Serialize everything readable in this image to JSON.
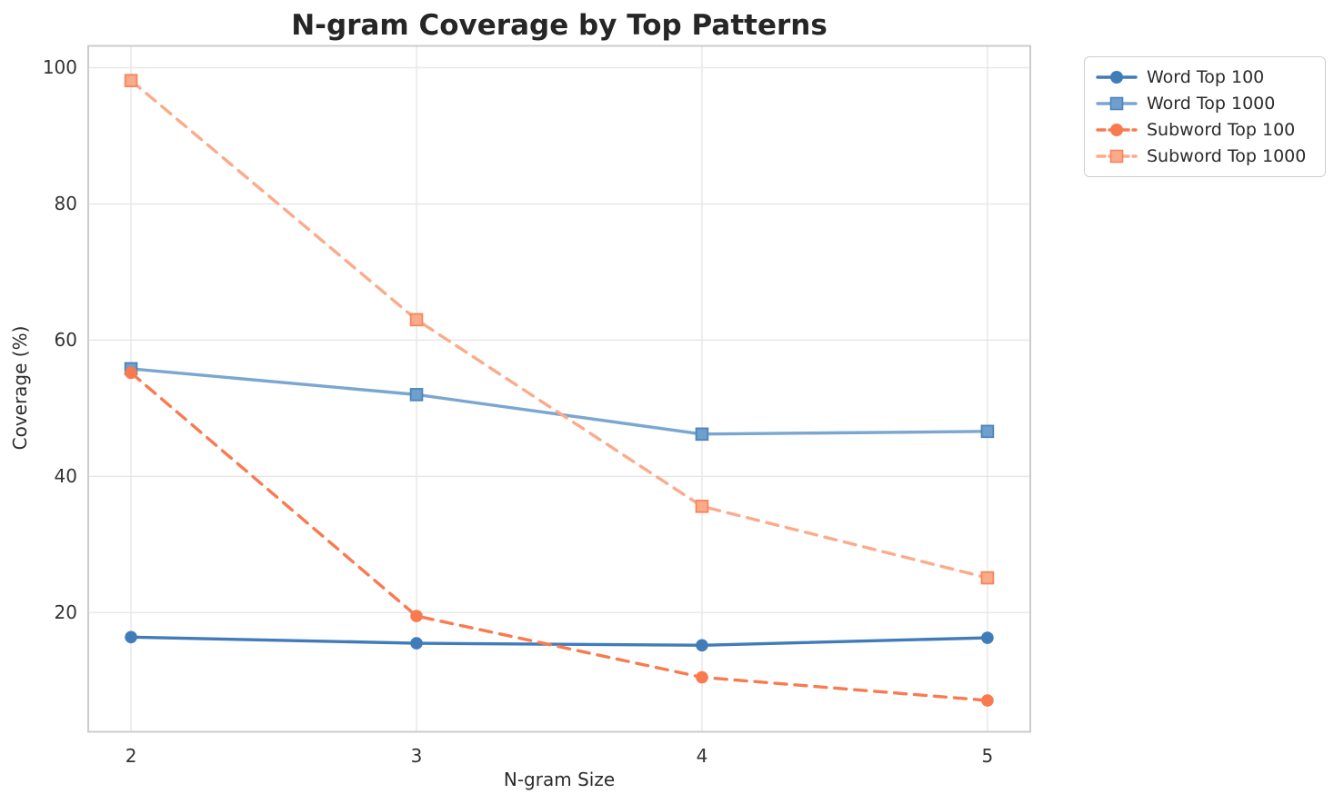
{
  "figure": {
    "background": "#ffffff",
    "text_color": "#2b2b2b",
    "grid_color": "#e8e8e8",
    "spine_color": "#cccccc"
  },
  "chart_data": {
    "type": "line",
    "title": "N-gram Coverage by Top Patterns",
    "xlabel": "N-gram Size",
    "ylabel": "Coverage (%)",
    "x": [
      2,
      3,
      4,
      5
    ],
    "xtick_labels": [
      "2",
      "3",
      "4",
      "5"
    ],
    "yticks": [
      20,
      40,
      60,
      80,
      100
    ],
    "ytick_labels": [
      "20",
      "40",
      "60",
      "80",
      "100"
    ],
    "xlim": [
      1.85,
      5.15
    ],
    "ylim": [
      2.5,
      103.2
    ],
    "grid": true,
    "legend_position": "outside-upper-right",
    "series": [
      {
        "name": "Word Top 100",
        "values": [
          16.4,
          15.5,
          15.2,
          16.3
        ],
        "color": "#3f7cb9",
        "marker": "circle",
        "marker_fill": "#3f7cb9",
        "marker_edge": "#3f7cb9",
        "line_style": "solid"
      },
      {
        "name": "Word Top 1000",
        "values": [
          55.8,
          52.0,
          46.2,
          46.6
        ],
        "color": "#7aa6d0",
        "marker": "square",
        "marker_fill": "#6f9fcc",
        "marker_edge": "#4c85b9",
        "line_style": "solid"
      },
      {
        "name": "Subword Top 100",
        "values": [
          55.2,
          19.5,
          10.5,
          7.1
        ],
        "color": "#fa7a50",
        "marker": "circle",
        "marker_fill": "#fa7a50",
        "marker_edge": "#fa7a50",
        "line_style": "dashed"
      },
      {
        "name": "Subword Top 1000",
        "values": [
          98.1,
          63.0,
          35.6,
          25.1
        ],
        "color": "#fbab8b",
        "marker": "square",
        "marker_fill": "#fbaa8a",
        "marker_edge": "#f8845c",
        "line_style": "dashed"
      }
    ]
  }
}
